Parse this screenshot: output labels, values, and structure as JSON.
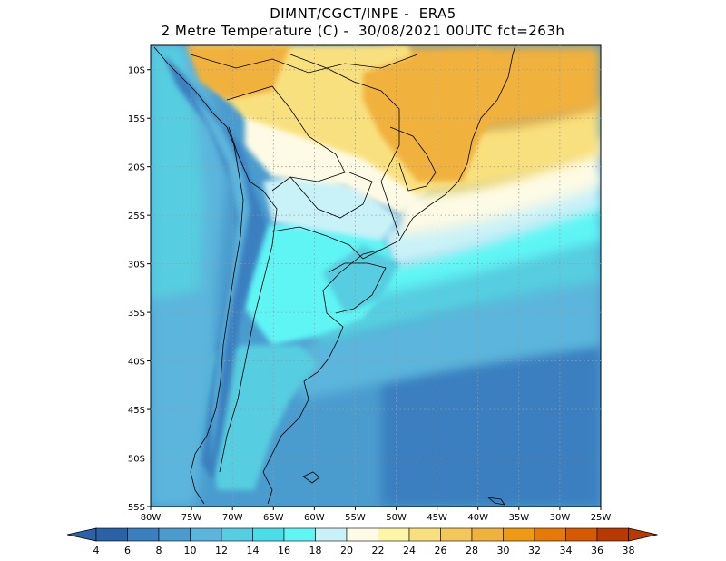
{
  "title": {
    "line1": "DIMNT/CGCT/INPE -  ERA5",
    "line2": "2 Metre Temperature (C) -  30/08/2021 00UTC fct=263h"
  },
  "map": {
    "lat_labels": [
      "10S",
      "15S",
      "20S",
      "25S",
      "30S",
      "35S",
      "40S",
      "45S",
      "50S",
      "55S"
    ],
    "lon_labels": [
      "80W",
      "75W",
      "70W",
      "65W",
      "60W",
      "55W",
      "50W",
      "45W",
      "40W",
      "35W",
      "30W",
      "25W"
    ],
    "lat_range": [
      -55,
      -7.5
    ],
    "lon_range": [
      -80,
      -25
    ],
    "gridlines": "dotted"
  },
  "colorbar": {
    "labels": [
      "4",
      "6",
      "8",
      "10",
      "12",
      "14",
      "16",
      "18",
      "20",
      "22",
      "24",
      "26",
      "28",
      "30",
      "32",
      "34",
      "36",
      "38"
    ],
    "colors": [
      "#2a62a8",
      "#3a7fc0",
      "#4a9ccf",
      "#5cb5dc",
      "#56cde0",
      "#4adfe8",
      "#5ff5f5",
      "#c9f1f8",
      "#fdfbe6",
      "#fcf6a6",
      "#f9e07e",
      "#f4c75a",
      "#f1b13d",
      "#f09a14",
      "#e77a06",
      "#d65a02",
      "#b83a02"
    ],
    "min_color": "#2a62a8",
    "max_color": "#b83a02"
  },
  "palette": {
    "ocean_cold": "#3a7fc0",
    "ocean_mid": "#4a9ccf",
    "ocean_cool": "#5cb5dc",
    "cyan": "#56cde0",
    "bright_cyan": "#5ff5f5",
    "pale_blue": "#c9f1f8",
    "cream": "#fdfbe6",
    "yellow": "#f9e07e",
    "orange": "#f1b13d"
  }
}
